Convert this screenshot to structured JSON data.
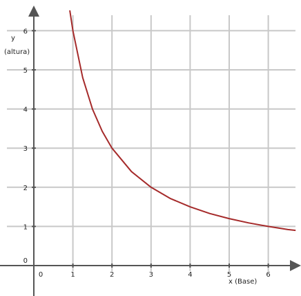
{
  "chart_data": {
    "type": "line",
    "title": "",
    "xlabel": "x (Base)",
    "ylabel_line1": "y",
    "ylabel_line2": "(altura)",
    "xlim": [
      -0.8,
      6.8
    ],
    "ylim": [
      -0.35,
      6.6
    ],
    "x_ticks": [
      0,
      1,
      2,
      3,
      4,
      5,
      6
    ],
    "y_ticks": [
      0,
      1,
      2,
      3,
      4,
      5,
      6
    ],
    "x_tick_labels": [
      "0",
      "1",
      "2",
      "3",
      "4",
      "5",
      "6"
    ],
    "y_tick_labels": [
      "0",
      "1",
      "2",
      "3",
      "4",
      "5",
      "6"
    ],
    "grid": true,
    "series": [
      {
        "color": "#a52a2a",
        "x": [
          0.92,
          1,
          1.25,
          1.5,
          1.75,
          2,
          2.5,
          3,
          3.5,
          4,
          4.5,
          5,
          5.5,
          6,
          6.5,
          6.7
        ],
        "y": [
          6.52,
          6,
          4.8,
          4,
          3.43,
          3,
          2.4,
          2,
          1.71,
          1.5,
          1.33,
          1.2,
          1.09,
          1,
          0.92,
          0.9
        ]
      }
    ],
    "colors": {
      "axis": "#555555",
      "grid": "#c8c8c8",
      "curve": "#a52a2a",
      "text": "#222222"
    }
  }
}
